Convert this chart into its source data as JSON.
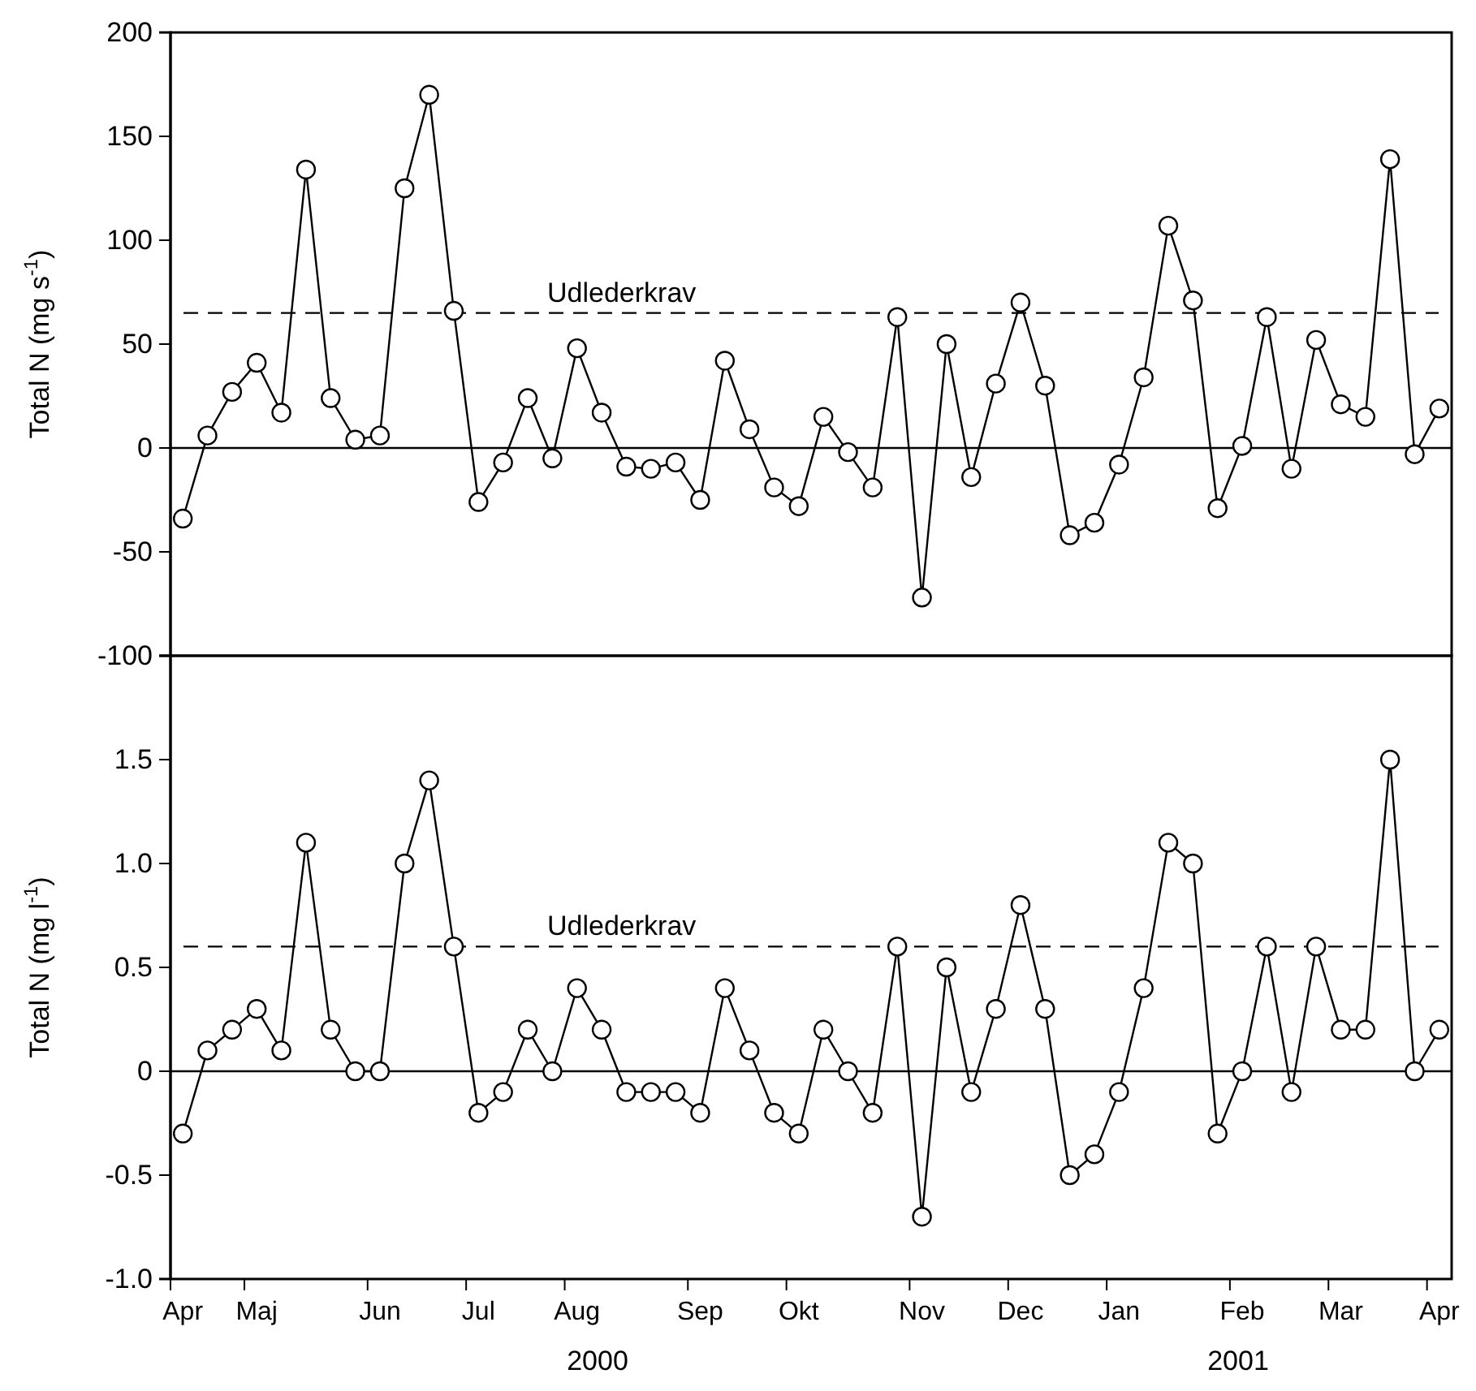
{
  "chart_data": [
    {
      "type": "line",
      "ylabel": "Total N (mg s$^{-1}$)",
      "categories": [
        null,
        null,
        null,
        null,
        null,
        null,
        null,
        null,
        null,
        null,
        null,
        null,
        null,
        null,
        null,
        null,
        null,
        null,
        null,
        null,
        null,
        null,
        null,
        null,
        null,
        null,
        null,
        null,
        null,
        null,
        null,
        null,
        null,
        null,
        null,
        null,
        null,
        null,
        null,
        null,
        null,
        null,
        null,
        null,
        null,
        null,
        null,
        null,
        null,
        null,
        null,
        null
      ],
      "series": [
        {
          "color": "#000000",
          "values": [
            -34,
            6,
            27,
            41,
            17,
            134,
            24,
            4,
            6,
            125,
            170,
            66,
            -26,
            -7,
            24,
            -5,
            48,
            17,
            -9,
            -10,
            -7,
            -25,
            42,
            9,
            -19,
            -28,
            15,
            -2,
            -19,
            63,
            -72,
            50,
            -14,
            31,
            70,
            30,
            -42,
            -36,
            -8,
            34,
            107,
            71,
            -29,
            1,
            63,
            -10,
            52,
            21,
            15,
            139,
            -3,
            19
          ]
        }
      ],
      "ylim": [
        -100,
        200
      ],
      "yticks": [
        -100,
        -50,
        0,
        50,
        100,
        150,
        200
      ],
      "tick_labels": "y",
      "marker": "circle",
      "line_style": "solid",
      "ref_lines": [
        {
          "axis": "y",
          "value": 0,
          "line_style": "solid"
        },
        {
          "axis": "y",
          "value": 65,
          "label": "Udlederkrav",
          "line_style": "dashed"
        }
      ]
    },
    {
      "type": "line",
      "ylabel": "Total N (mg l$^{-1}$)",
      "categories": [
        "Apr",
        null,
        null,
        "Maj",
        null,
        null,
        null,
        null,
        "Jun",
        null,
        null,
        null,
        "Jul",
        null,
        null,
        null,
        "Aug",
        null,
        null,
        null,
        null,
        "Sep",
        null,
        null,
        null,
        "Okt",
        null,
        null,
        null,
        null,
        "Nov",
        null,
        null,
        null,
        "Dec",
        null,
        null,
        null,
        "Jan",
        null,
        null,
        null,
        null,
        "Feb",
        null,
        null,
        null,
        "Mar",
        null,
        null,
        null,
        "Apr"
      ],
      "series": [
        {
          "color": "#000000",
          "values": [
            -0.3,
            0.1,
            0.2,
            0.3,
            0.1,
            1.1,
            0.2,
            0,
            0,
            1.0,
            1.4,
            0.6,
            -0.2,
            -0.1,
            0.2,
            0,
            0.4,
            0.2,
            -0.1,
            -0.1,
            -0.1,
            -0.2,
            0.4,
            0.1,
            -0.2,
            -0.3,
            0.2,
            0,
            -0.2,
            0.6,
            -0.7,
            0.5,
            -0.1,
            0.3,
            0.8,
            0.3,
            -0.5,
            -0.4,
            -0.1,
            0.4,
            1.1,
            1.0,
            -0.3,
            0,
            0.6,
            -0.1,
            0.6,
            0.2,
            0.2,
            1.5,
            0,
            0.2
          ]
        }
      ],
      "ylim": [
        -1,
        2
      ],
      "yticks": [
        {
          "value": -1,
          "label": "-1.0"
        },
        {
          "value": -0.5,
          "label": "-0.5"
        },
        0,
        {
          "value": 0.5,
          "label": "0.5"
        },
        {
          "value": 1,
          "label": "1.0"
        },
        {
          "value": 1.5,
          "label": "1.5"
        }
      ],
      "annotations": [
        "2000",
        "2001"
      ],
      "marker": "circle",
      "line_style": "solid",
      "ref_lines": [
        {
          "axis": "y",
          "value": 0,
          "line_style": "solid"
        },
        {
          "axis": "y",
          "value": 0.6,
          "label": "Udlederkrav",
          "line_style": "dashed"
        }
      ]
    }
  ]
}
